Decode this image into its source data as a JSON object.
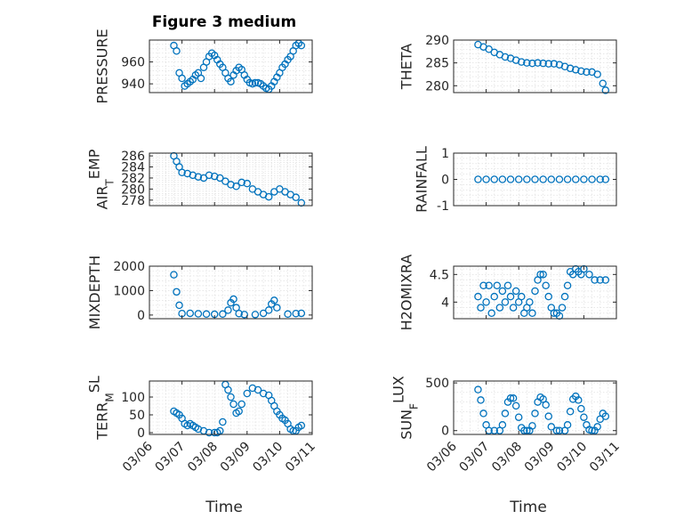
{
  "figure": {
    "title": "Figure 3 medium",
    "xlabel": "Time"
  },
  "chart_data": [
    {
      "type": "scatter",
      "ylabel": "PRESSURE",
      "ylim": [
        932,
        980
      ],
      "yticks": [
        940,
        960
      ],
      "grid": true,
      "xticks_labeled": false,
      "x": [
        "03/06 18:00",
        "03/06 20:00",
        "03/06 22:00",
        "03/07 00:00",
        "03/07 02:00",
        "03/07 04:00",
        "03/07 06:00",
        "03/07 08:00",
        "03/07 10:00",
        "03/07 12:00",
        "03/07 14:00",
        "03/07 16:00",
        "03/07 18:00",
        "03/07 20:00",
        "03/07 22:00",
        "03/08 00:00",
        "03/08 02:00",
        "03/08 04:00",
        "03/08 06:00",
        "03/08 08:00",
        "03/08 10:00",
        "03/08 12:00",
        "03/08 14:00",
        "03/08 16:00",
        "03/08 18:00",
        "03/08 20:00",
        "03/08 22:00",
        "03/09 00:00",
        "03/09 02:00",
        "03/09 04:00",
        "03/09 06:00",
        "03/09 08:00",
        "03/09 10:00",
        "03/09 12:00",
        "03/09 14:00",
        "03/09 16:00",
        "03/09 18:00",
        "03/09 20:00",
        "03/09 22:00",
        "03/10 00:00",
        "03/10 02:00",
        "03/10 04:00",
        "03/10 06:00",
        "03/10 08:00",
        "03/10 10:00",
        "03/10 12:00",
        "03/10 14:00",
        "03/10 16:00"
      ],
      "values": [
        975,
        970,
        950,
        945,
        938,
        940,
        942,
        944,
        948,
        950,
        945,
        955,
        960,
        965,
        968,
        966,
        962,
        958,
        955,
        950,
        945,
        942,
        948,
        952,
        955,
        953,
        948,
        944,
        941,
        940,
        941,
        941,
        940,
        938,
        936,
        935,
        938,
        942,
        946,
        950,
        955,
        958,
        962,
        965,
        970,
        975,
        977,
        975
      ]
    },
    {
      "type": "scatter",
      "ylabel": "THETA",
      "ylim": [
        278.5,
        290
      ],
      "yticks": [
        280,
        285,
        290
      ],
      "grid": true,
      "xticks_labeled": false,
      "x": [
        "03/06 18:00",
        "03/06 22:00",
        "03/07 02:00",
        "03/07 06:00",
        "03/07 10:00",
        "03/07 14:00",
        "03/07 18:00",
        "03/07 22:00",
        "03/08 02:00",
        "03/08 06:00",
        "03/08 10:00",
        "03/08 14:00",
        "03/08 18:00",
        "03/08 22:00",
        "03/09 02:00",
        "03/09 06:00",
        "03/09 10:00",
        "03/09 14:00",
        "03/09 18:00",
        "03/09 22:00",
        "03/10 02:00",
        "03/10 06:00",
        "03/10 10:00",
        "03/10 14:00",
        "03/10 16:00"
      ],
      "values": [
        289,
        288.5,
        288,
        287.3,
        286.8,
        286.3,
        286,
        285.6,
        285.2,
        285,
        284.9,
        285,
        284.9,
        284.8,
        284.8,
        284.6,
        284.2,
        283.8,
        283.5,
        283.2,
        283,
        283,
        282.5,
        280.5,
        279
      ]
    },
    {
      "type": "scatter",
      "ylabel": "AIR_TEMP",
      "ylim": [
        277,
        286.5
      ],
      "yticks": [
        278,
        280,
        282,
        284,
        286
      ],
      "grid": true,
      "xticks_labeled": false,
      "x": [
        "03/06 18:00",
        "03/06 20:00",
        "03/06 22:00",
        "03/07 00:00",
        "03/07 04:00",
        "03/07 08:00",
        "03/07 12:00",
        "03/07 16:00",
        "03/07 20:00",
        "03/08 00:00",
        "03/08 04:00",
        "03/08 08:00",
        "03/08 12:00",
        "03/08 16:00",
        "03/08 20:00",
        "03/09 00:00",
        "03/09 04:00",
        "03/09 08:00",
        "03/09 12:00",
        "03/09 16:00",
        "03/09 20:00",
        "03/10 00:00",
        "03/10 04:00",
        "03/10 08:00",
        "03/10 12:00",
        "03/10 16:00"
      ],
      "values": [
        286,
        285,
        284,
        283,
        282.8,
        282.5,
        282.2,
        282,
        282.5,
        282.3,
        282,
        281.4,
        280.8,
        280.5,
        281.2,
        281,
        280,
        279.5,
        279,
        278.6,
        279.5,
        280,
        279.5,
        279,
        278.5,
        277.5
      ]
    },
    {
      "type": "scatter",
      "ylabel": "RAINFALL",
      "ylim": [
        -1,
        1
      ],
      "yticks": [
        -1,
        0,
        1
      ],
      "grid": true,
      "xticks_labeled": false,
      "x": [
        "03/06 18:00",
        "03/07 00:00",
        "03/07 06:00",
        "03/07 12:00",
        "03/07 18:00",
        "03/08 00:00",
        "03/08 06:00",
        "03/08 12:00",
        "03/08 18:00",
        "03/09 00:00",
        "03/09 06:00",
        "03/09 12:00",
        "03/09 18:00",
        "03/10 00:00",
        "03/10 06:00",
        "03/10 12:00",
        "03/10 16:00"
      ],
      "values": [
        0,
        0,
        0,
        0,
        0,
        0,
        0,
        0,
        0,
        0,
        0,
        0,
        0,
        0,
        0,
        0,
        0
      ]
    },
    {
      "type": "scatter",
      "ylabel": "MIXDEPTH",
      "ylim": [
        -150,
        2000
      ],
      "yticks": [
        0,
        1000,
        2000
      ],
      "grid": true,
      "xticks_labeled": false,
      "x": [
        "03/06 18:00",
        "03/06 20:00",
        "03/06 22:00",
        "03/07 00:00",
        "03/07 06:00",
        "03/07 12:00",
        "03/07 18:00",
        "03/08 00:00",
        "03/08 06:00",
        "03/08 10:00",
        "03/08 12:00",
        "03/08 14:00",
        "03/08 16:00",
        "03/08 18:00",
        "03/08 22:00",
        "03/09 06:00",
        "03/09 12:00",
        "03/09 16:00",
        "03/09 18:00",
        "03/09 20:00",
        "03/09 22:00",
        "03/10 06:00",
        "03/10 12:00",
        "03/10 16:00"
      ],
      "values": [
        1650,
        950,
        400,
        60,
        70,
        50,
        40,
        30,
        40,
        200,
        500,
        650,
        300,
        60,
        20,
        20,
        70,
        200,
        450,
        600,
        300,
        40,
        60,
        70
      ]
    },
    {
      "type": "scatter",
      "ylabel": "H2OMIXRA",
      "ylim": [
        3.7,
        4.65
      ],
      "yticks": [
        4,
        4.5
      ],
      "grid": true,
      "xticks_labeled": false,
      "x": [
        "03/06 18:00",
        "03/06 20:00",
        "03/06 22:00",
        "03/07 00:00",
        "03/07 02:00",
        "03/07 04:00",
        "03/07 06:00",
        "03/07 08:00",
        "03/07 10:00",
        "03/07 12:00",
        "03/07 14:00",
        "03/07 16:00",
        "03/07 18:00",
        "03/07 20:00",
        "03/07 22:00",
        "03/08 00:00",
        "03/08 02:00",
        "03/08 04:00",
        "03/08 06:00",
        "03/08 08:00",
        "03/08 10:00",
        "03/08 12:00",
        "03/08 14:00",
        "03/08 16:00",
        "03/08 18:00",
        "03/08 20:00",
        "03/08 22:00",
        "03/09 00:00",
        "03/09 02:00",
        "03/09 04:00",
        "03/09 06:00",
        "03/09 08:00",
        "03/09 10:00",
        "03/09 12:00",
        "03/09 14:00",
        "03/09 16:00",
        "03/09 18:00",
        "03/09 20:00",
        "03/09 22:00",
        "03/10 00:00",
        "03/10 04:00",
        "03/10 08:00",
        "03/10 12:00",
        "03/10 16:00"
      ],
      "values": [
        4.1,
        3.9,
        4.3,
        4.0,
        4.3,
        3.8,
        4.1,
        4.3,
        3.9,
        4.2,
        4.0,
        4.3,
        4.1,
        3.9,
        4.2,
        4.0,
        4.1,
        3.8,
        3.9,
        4.0,
        3.8,
        4.2,
        4.4,
        4.5,
        4.5,
        4.3,
        4.1,
        3.9,
        3.8,
        3.8,
        3.75,
        3.9,
        4.1,
        4.3,
        4.55,
        4.5,
        4.6,
        4.55,
        4.5,
        4.6,
        4.5,
        4.4,
        4.4,
        4.4
      ]
    },
    {
      "type": "scatter",
      "ylabel": "TERR_MSL",
      "ylim": [
        -5,
        145
      ],
      "yticks": [
        0,
        50,
        100
      ],
      "grid": true,
      "xticks_labeled": true,
      "x": [
        "03/06 18:00",
        "03/06 20:00",
        "03/06 22:00",
        "03/07 00:00",
        "03/07 02:00",
        "03/07 04:00",
        "03/07 06:00",
        "03/07 08:00",
        "03/07 10:00",
        "03/07 12:00",
        "03/07 16:00",
        "03/07 20:00",
        "03/08 00:00",
        "03/08 02:00",
        "03/08 04:00",
        "03/08 06:00",
        "03/08 08:00",
        "03/08 10:00",
        "03/08 12:00",
        "03/08 14:00",
        "03/08 16:00",
        "03/08 18:00",
        "03/08 20:00",
        "03/09 00:00",
        "03/09 04:00",
        "03/09 08:00",
        "03/09 12:00",
        "03/09 16:00",
        "03/09 18:00",
        "03/09 20:00",
        "03/09 22:00",
        "03/10 00:00",
        "03/10 02:00",
        "03/10 04:00",
        "03/10 06:00",
        "03/10 08:00",
        "03/10 10:00",
        "03/10 12:00",
        "03/10 14:00",
        "03/10 16:00"
      ],
      "values": [
        60,
        55,
        50,
        40,
        25,
        20,
        25,
        20,
        15,
        10,
        5,
        0,
        0,
        0,
        5,
        30,
        135,
        120,
        100,
        80,
        55,
        60,
        80,
        110,
        125,
        120,
        110,
        105,
        90,
        75,
        60,
        50,
        40,
        35,
        25,
        10,
        5,
        5,
        15,
        20
      ]
    },
    {
      "type": "scatter",
      "ylabel": "SUN_FLUX",
      "ylim": [
        -40,
        520
      ],
      "yticks": [
        0,
        500
      ],
      "grid": true,
      "xticks_labeled": true,
      "x": [
        "03/06 18:00",
        "03/06 20:00",
        "03/06 22:00",
        "03/07 00:00",
        "03/07 02:00",
        "03/07 06:00",
        "03/07 10:00",
        "03/07 12:00",
        "03/07 14:00",
        "03/07 16:00",
        "03/07 18:00",
        "03/07 20:00",
        "03/07 22:00",
        "03/08 00:00",
        "03/08 02:00",
        "03/08 04:00",
        "03/08 06:00",
        "03/08 08:00",
        "03/08 10:00",
        "03/08 12:00",
        "03/08 14:00",
        "03/08 16:00",
        "03/08 18:00",
        "03/08 20:00",
        "03/08 22:00",
        "03/09 00:00",
        "03/09 04:00",
        "03/09 06:00",
        "03/09 10:00",
        "03/09 12:00",
        "03/09 14:00",
        "03/09 16:00",
        "03/09 18:00",
        "03/09 20:00",
        "03/09 22:00",
        "03/10 00:00",
        "03/10 02:00",
        "03/10 04:00",
        "03/10 06:00",
        "03/10 08:00",
        "03/10 10:00",
        "03/10 12:00",
        "03/10 14:00",
        "03/10 16:00"
      ],
      "values": [
        430,
        320,
        180,
        60,
        0,
        0,
        0,
        60,
        180,
        300,
        340,
        340,
        260,
        140,
        30,
        0,
        0,
        0,
        50,
        180,
        300,
        350,
        330,
        270,
        150,
        40,
        0,
        0,
        0,
        60,
        200,
        330,
        360,
        320,
        230,
        140,
        60,
        10,
        0,
        0,
        40,
        120,
        180,
        150
      ]
    }
  ],
  "x_axis": {
    "min": "03/06 00:00",
    "max": "03/11 00:00",
    "ticks": [
      "03/06",
      "03/07",
      "03/08",
      "03/09",
      "03/10",
      "03/11"
    ]
  },
  "colors": {
    "marker": "#0072BD",
    "axis": "#262626",
    "grid": "#d9d9d9"
  }
}
